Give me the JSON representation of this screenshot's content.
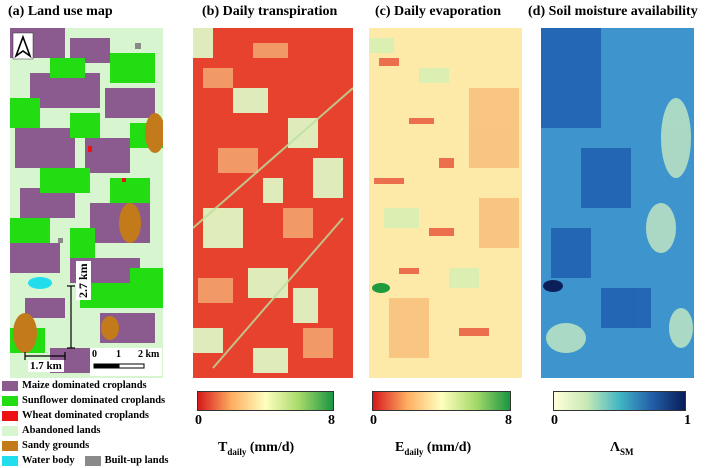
{
  "panels": [
    {
      "title": "(a) Land use map"
    },
    {
      "title": "(b) Daily transpiration"
    },
    {
      "title": "(c) Daily evaporation"
    },
    {
      "title": "(d) Soil moisture availability"
    }
  ],
  "panel_a": {
    "north_arrow_letter": "A",
    "dimension_vertical": "2.7 km",
    "dimension_horizontal": "1.7 km",
    "scale_bar_ticks": [
      "0",
      "1",
      "2 km"
    ]
  },
  "legend": [
    {
      "label": "Maize dominated croplands",
      "color": "#8b5a8f"
    },
    {
      "label": "Sunflower dominated croplands",
      "color": "#22dd11"
    },
    {
      "label": "Wheat dominated croplands",
      "color": "#ee1111"
    },
    {
      "label": "Abandoned lands",
      "color": "#d7f5cf"
    },
    {
      "label": "Sandy grounds",
      "color": "#c27a1a"
    },
    {
      "label": "Water body",
      "color": "#22ddee"
    },
    {
      "label": "Built-up lands",
      "color": "#8a8a8a"
    }
  ],
  "colorbars": [
    {
      "min": "0",
      "max": "8",
      "label_main": "T",
      "label_sub": "daily",
      "label_unit": " (mm/d)",
      "colors": [
        "#d7191c",
        "#fdae61",
        "#ffffbf",
        "#a6d96a",
        "#1a9641"
      ]
    },
    {
      "min": "0",
      "max": "8",
      "label_main": "E",
      "label_sub": "daily",
      "label_unit": " (mm/d)",
      "colors": [
        "#d7191c",
        "#fdae61",
        "#ffffbf",
        "#a6d96a",
        "#1a9641"
      ]
    },
    {
      "min": "0",
      "max": "1",
      "label_main": "Λ",
      "label_sub": "SM",
      "label_unit": "",
      "colors": [
        "#ffffd9",
        "#c7e9b4",
        "#41b6c4",
        "#225ea8",
        "#081d58"
      ]
    }
  ]
}
